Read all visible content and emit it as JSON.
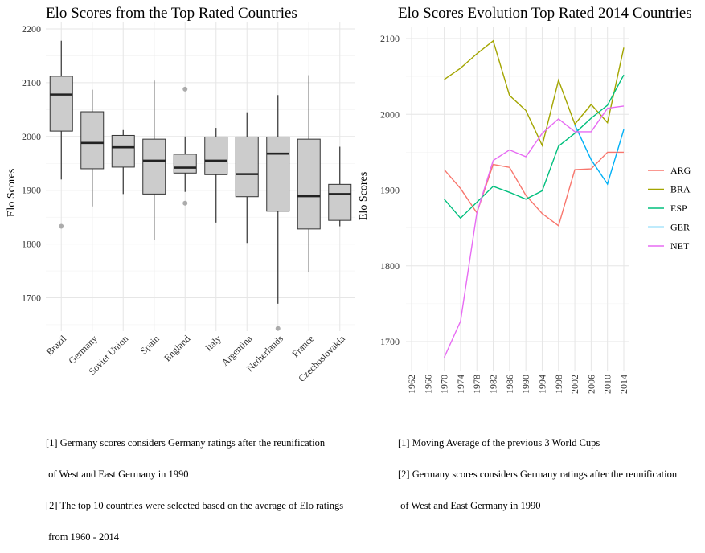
{
  "chart_data": [
    {
      "type": "boxplot",
      "title": "Elo Scores from the Top Rated Countries",
      "xlabel": "",
      "ylabel": "Elo Scores",
      "ylim": [
        1650,
        2200
      ],
      "yticks": [
        1700,
        1800,
        1900,
        2000,
        2100,
        2200
      ],
      "grid": true,
      "categories": [
        "Brazil",
        "Germany",
        "Soviet Union",
        "Spain",
        "England",
        "Italy",
        "Argentina",
        "Netherlands",
        "France",
        "Czechoslovakia"
      ],
      "boxes": [
        {
          "category": "Brazil",
          "min": 1920,
          "q1": 2010,
          "median": 2078,
          "q3": 2112,
          "max": 2178,
          "outliers": [
            1833
          ]
        },
        {
          "category": "Germany",
          "min": 1870,
          "q1": 1940,
          "median": 1988,
          "q3": 2046,
          "max": 2087,
          "outliers": []
        },
        {
          "category": "Soviet Union",
          "min": 1893,
          "q1": 1943,
          "median": 1980,
          "q3": 2002,
          "max": 2012,
          "outliers": []
        },
        {
          "category": "Spain",
          "min": 1807,
          "q1": 1893,
          "median": 1955,
          "q3": 1995,
          "max": 2104,
          "outliers": []
        },
        {
          "category": "England",
          "min": 1897,
          "q1": 1932,
          "median": 1942,
          "q3": 1967,
          "max": 2000,
          "outliers": [
            2088,
            1876
          ]
        },
        {
          "category": "Italy",
          "min": 1840,
          "q1": 1929,
          "median": 1955,
          "q3": 1999,
          "max": 2016,
          "outliers": []
        },
        {
          "category": "Argentina",
          "min": 1802,
          "q1": 1888,
          "median": 1930,
          "q3": 1999,
          "max": 2045,
          "outliers": []
        },
        {
          "category": "Netherlands",
          "min": 1689,
          "q1": 1861,
          "median": 1968,
          "q3": 1999,
          "max": 2077,
          "outliers": [
            1643
          ]
        },
        {
          "category": "France",
          "min": 1747,
          "q1": 1828,
          "median": 1889,
          "q3": 1995,
          "max": 2114,
          "outliers": []
        },
        {
          "category": "Czechoslovakia",
          "min": 1833,
          "q1": 1844,
          "median": 1893,
          "q3": 1911,
          "max": 1981,
          "outliers": []
        }
      ]
    },
    {
      "type": "line",
      "title": "Elo Scores Evolution Top Rated 2014 Countries",
      "xlabel": "",
      "ylabel": "Elo Scores",
      "ylim": [
        1680,
        2120
      ],
      "yticks": [
        1700,
        1800,
        1900,
        2000,
        2100
      ],
      "xticks": [
        "1962",
        "1966",
        "1970",
        "1974",
        "1978",
        "1982",
        "1986",
        "1990",
        "1994",
        "1998",
        "2002",
        "2006",
        "2010",
        "2014"
      ],
      "grid": true,
      "legend_position": "right",
      "x": [
        1970,
        1974,
        1978,
        1982,
        1986,
        1990,
        1994,
        1998,
        2002,
        2006,
        2010,
        2014
      ],
      "series": [
        {
          "name": "ARG",
          "color": "#F8766D",
          "values": [
            1927,
            1902,
            1870,
            1934,
            1930,
            1893,
            1869,
            1853,
            1927,
            1928,
            1950,
            1950
          ]
        },
        {
          "name": "BRA",
          "color": "#A3A500",
          "values": [
            2046,
            2061,
            2080,
            2097,
            2025,
            2005,
            1959,
            2045,
            1987,
            2013,
            1989,
            2088
          ]
        },
        {
          "name": "ESP",
          "color": "#00BF7D",
          "values": [
            1888,
            1863,
            1884,
            1905,
            1897,
            1888,
            1899,
            1958,
            1975,
            1995,
            2012,
            2052
          ]
        },
        {
          "name": "GER",
          "color": "#00B0F6",
          "values": [
            null,
            null,
            null,
            null,
            null,
            null,
            null,
            null,
            1986,
            1940,
            1908,
            1980
          ]
        },
        {
          "name": "NET",
          "color": "#E76BF3",
          "values": [
            1679,
            1727,
            1870,
            1939,
            1953,
            1944,
            1975,
            1994,
            1977,
            1977,
            2008,
            2011
          ]
        }
      ]
    }
  ],
  "notes": {
    "left": [
      "[1] Germany scores considers Germany ratings after the reunification",
      " of West and East Germany in 1990",
      "[2] The top 10 countries were selected based on the average of Elo ratings",
      " from 1960 - 2014"
    ],
    "right": [
      "[1] Moving Average of the previous 3 World Cups",
      "[2] Germany scores considers Germany ratings after the reunification",
      " of West and East Germany in 1990"
    ]
  }
}
